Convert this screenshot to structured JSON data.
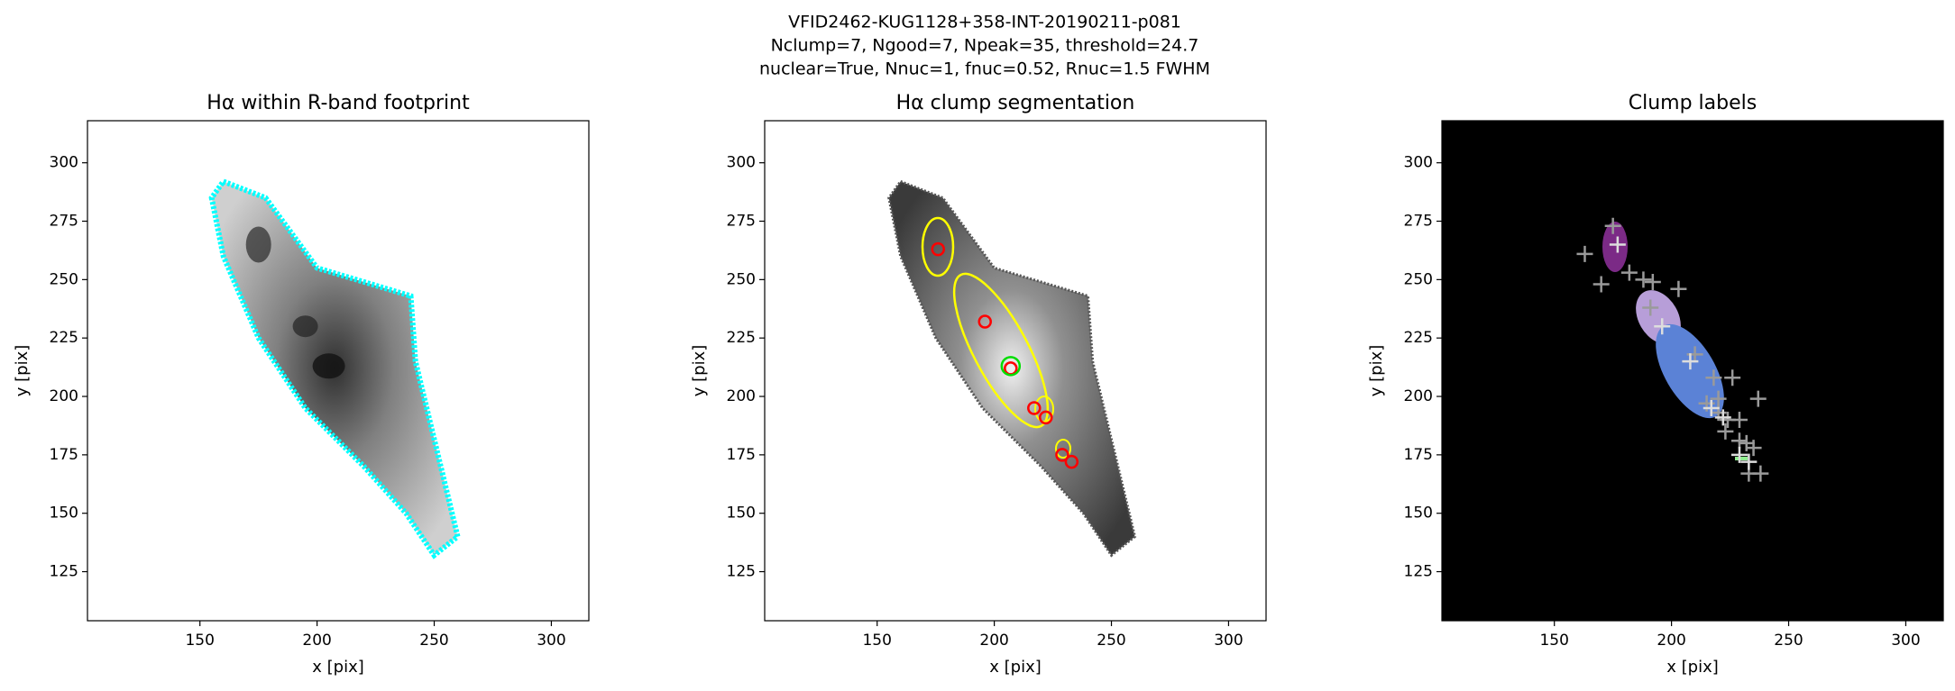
{
  "suptitle": [
    "VFID2462-KUG1128+358-INT-20190211-p081",
    "Nclump=7, Ngood=7, Npeak=35, threshold=24.7",
    "nuclear=True, Nnuc=1, fnuc=0.52, Rnuc=1.5 FWHM"
  ],
  "chart_data": [
    {
      "type": "image",
      "title": "Hα within R-band footprint",
      "x_label": "x [pix]",
      "y_label": "y [pix]",
      "xlim": [
        102,
        316
      ],
      "ylim": [
        104,
        318
      ],
      "xticks": [
        150,
        200,
        250,
        300
      ],
      "yticks": [
        125,
        150,
        175,
        200,
        225,
        250,
        275,
        300
      ],
      "series": []
    },
    {
      "type": "image",
      "title": "Hα clump segmentation",
      "x_label": "x [pix]",
      "y_label": "y [pix]",
      "xlim": [
        102,
        316
      ],
      "ylim": [
        104,
        318
      ],
      "xticks": [
        150,
        200,
        250,
        300
      ],
      "yticks": [
        125,
        150,
        175,
        200,
        225,
        250,
        275,
        300
      ],
      "series": [
        {
          "marker": "o",
          "color": "#ff0000",
          "x": [
            176,
            196,
            207,
            217,
            222,
            229,
            233
          ],
          "y": [
            263,
            232,
            212,
            195,
            191,
            175,
            172
          ]
        },
        {
          "marker": "O",
          "color": "#00dd00",
          "x": [
            207
          ],
          "y": [
            213
          ]
        }
      ]
    },
    {
      "type": "image",
      "title": "Clump labels",
      "x_label": "x [pix]",
      "y_label": "y [pix]",
      "xlim": [
        102,
        316
      ],
      "ylim": [
        104,
        318
      ],
      "xticks": [
        150,
        200,
        250,
        300
      ],
      "yticks": [
        125,
        150,
        175,
        200,
        225,
        250,
        275,
        300
      ],
      "series": [
        {
          "marker": "+",
          "color": "#9a9a9a",
          "x": [
            175,
            163,
            170,
            182,
            188,
            192,
            203,
            191,
            218,
            226,
            215,
            220,
            224,
            223,
            229,
            229,
            232,
            235,
            237,
            233,
            238,
            220,
            210
          ],
          "y": [
            273,
            261,
            248,
            253,
            250,
            249,
            246,
            238,
            208,
            208,
            197,
            193,
            190,
            185,
            190,
            181,
            180,
            178,
            199,
            167,
            167,
            199,
            218
          ]
        },
        {
          "marker": "+",
          "color": "#dddddd",
          "x": [
            177,
            196,
            208,
            217,
            222,
            229,
            233
          ],
          "y": [
            265,
            230,
            215,
            195,
            191,
            175,
            172
          ]
        }
      ]
    }
  ]
}
